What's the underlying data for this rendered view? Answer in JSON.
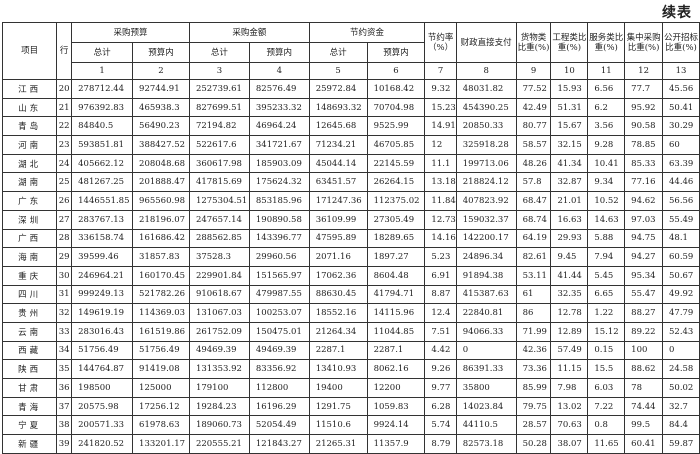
{
  "continued_label": "续表",
  "header": {
    "item": "项目",
    "line": "行",
    "budget": "采购预算",
    "amount": "采购金额",
    "savings": "节约资金",
    "total": "总计",
    "in_budget": "预算内",
    "saving_rate": "节约率（%）",
    "direct_pay": "财政直接支付",
    "goods_share": "货物类比重(%)",
    "works_share": "工程类比重(%)",
    "services_share": "服务类比重(%)",
    "central_share": "集中采购比重(%)",
    "tender_share": "公开招标比重(%)",
    "col_numbers": [
      "1",
      "2",
      "3",
      "4",
      "5",
      "6",
      "7",
      "8",
      "9",
      "10",
      "11",
      "12",
      "13"
    ]
  },
  "rows": [
    [
      "江西",
      "20",
      "278712.44",
      "92744.91",
      "252739.61",
      "82576.49",
      "25972.84",
      "10168.42",
      "9.32",
      "48031.82",
      "77.52",
      "15.93",
      "6.56",
      "77.7",
      "45.56"
    ],
    [
      "山东",
      "21",
      "976392.83",
      "465938.3",
      "827699.51",
      "395233.32",
      "148693.32",
      "70704.98",
      "15.23",
      "454390.25",
      "42.49",
      "51.31",
      "6.2",
      "95.92",
      "50.41"
    ],
    [
      "青岛",
      "22",
      "84840.5",
      "56490.23",
      "72194.82",
      "46964.24",
      "12645.68",
      "9525.99",
      "14.91",
      "20850.33",
      "80.77",
      "15.67",
      "3.56",
      "90.58",
      "30.29"
    ],
    [
      "河南",
      "23",
      "593851.81",
      "388427.52",
      "522617.6",
      "341721.67",
      "71234.21",
      "46705.85",
      "12",
      "325918.28",
      "58.57",
      "32.15",
      "9.28",
      "78.85",
      "60"
    ],
    [
      "湖北",
      "24",
      "405662.12",
      "208048.68",
      "360617.98",
      "185903.09",
      "45044.14",
      "22145.59",
      "11.1",
      "199713.06",
      "48.26",
      "41.34",
      "10.41",
      "85.33",
      "63.39"
    ],
    [
      "湖南",
      "25",
      "481267.25",
      "201888.47",
      "417815.69",
      "175624.32",
      "63451.57",
      "26264.15",
      "13.18",
      "218824.12",
      "57.8",
      "32.87",
      "9.34",
      "77.16",
      "44.46"
    ],
    [
      "广东",
      "26",
      "1446551.85",
      "965560.98",
      "1275304.51",
      "853185.96",
      "171247.36",
      "112375.02",
      "11.84",
      "407823.92",
      "68.47",
      "21.01",
      "10.52",
      "94.62",
      "56.56"
    ],
    [
      "深圳",
      "27",
      "283767.13",
      "218196.07",
      "247657.14",
      "190890.58",
      "36109.99",
      "27305.49",
      "12.73",
      "159032.37",
      "68.74",
      "16.63",
      "14.63",
      "97.03",
      "55.49"
    ],
    [
      "广西",
      "28",
      "336158.74",
      "161686.42",
      "288562.85",
      "143396.77",
      "47595.89",
      "18289.65",
      "14.16",
      "142200.17",
      "64.19",
      "29.93",
      "5.88",
      "94.75",
      "48.1"
    ],
    [
      "海南",
      "29",
      "39599.46",
      "31857.83",
      "37528.3",
      "29960.56",
      "2071.16",
      "1897.27",
      "5.23",
      "24896.34",
      "82.61",
      "9.45",
      "7.94",
      "94.27",
      "60.59"
    ],
    [
      "重庆",
      "30",
      "246964.21",
      "160170.45",
      "229901.84",
      "151565.97",
      "17062.36",
      "8604.48",
      "6.91",
      "91894.38",
      "53.11",
      "41.44",
      "5.45",
      "95.34",
      "50.67"
    ],
    [
      "四川",
      "31",
      "999249.13",
      "521782.26",
      "910618.67",
      "479987.55",
      "88630.45",
      "41794.71",
      "8.87",
      "415387.63",
      "61",
      "32.35",
      "6.65",
      "55.47",
      "49.92"
    ],
    [
      "贵州",
      "32",
      "149619.19",
      "114369.03",
      "131067.03",
      "100253.07",
      "18552.16",
      "14115.96",
      "12.4",
      "22840.81",
      "86",
      "12.78",
      "1.22",
      "88.27",
      "47.79"
    ],
    [
      "云南",
      "33",
      "283016.43",
      "161519.86",
      "261752.09",
      "150475.01",
      "21264.34",
      "11044.85",
      "7.51",
      "94066.33",
      "71.99",
      "12.89",
      "15.12",
      "89.22",
      "52.43"
    ],
    [
      "西藏",
      "34",
      "51756.49",
      "51756.49",
      "49469.39",
      "49469.39",
      "2287.1",
      "2287.1",
      "4.42",
      "0",
      "42.36",
      "57.49",
      "0.15",
      "100",
      "0"
    ],
    [
      "陕西",
      "35",
      "144764.87",
      "91419.08",
      "131353.92",
      "83356.92",
      "13410.93",
      "8062.16",
      "9.26",
      "86391.33",
      "73.36",
      "11.15",
      "15.5",
      "88.62",
      "24.58"
    ],
    [
      "甘肃",
      "36",
      "198500",
      "125000",
      "179100",
      "112800",
      "19400",
      "12200",
      "9.77",
      "35800",
      "85.99",
      "7.98",
      "6.03",
      "78",
      "50.02"
    ],
    [
      "青海",
      "37",
      "20575.98",
      "17256.12",
      "19284.23",
      "16196.29",
      "1291.75",
      "1059.83",
      "6.28",
      "14023.84",
      "79.75",
      "13.02",
      "7.22",
      "74.44",
      "32.7"
    ],
    [
      "宁夏",
      "38",
      "200571.33",
      "61978.63",
      "189060.73",
      "52054.49",
      "11510.6",
      "9924.14",
      "5.74",
      "44110.5",
      "28.57",
      "70.63",
      "0.8",
      "99.5",
      "84.4"
    ],
    [
      "新疆",
      "39",
      "241820.52",
      "133201.17",
      "220555.21",
      "121843.27",
      "21265.31",
      "11357.9",
      "8.79",
      "82573.18",
      "50.28",
      "38.07",
      "11.65",
      "60.41",
      "59.87"
    ]
  ]
}
